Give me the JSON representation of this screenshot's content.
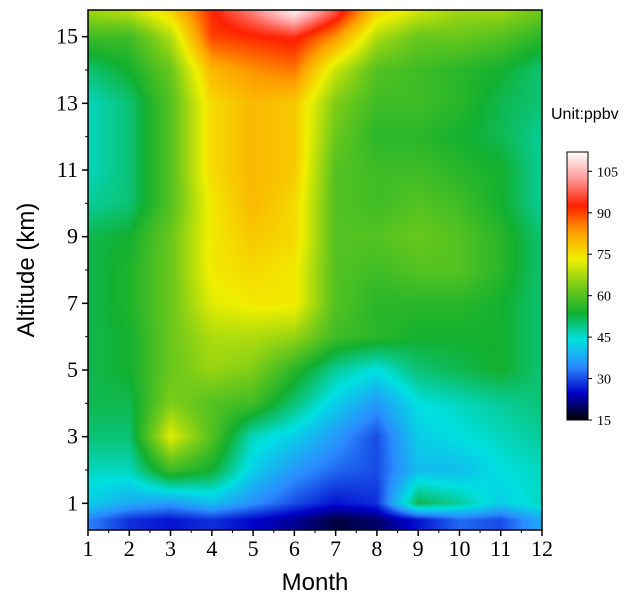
{
  "chart_data": {
    "type": "heatmap",
    "xlabel": "Month",
    "ylabel": "Altitude (km)",
    "x_ticks": [
      "1",
      "2",
      "3",
      "4",
      "5",
      "6",
      "7",
      "8",
      "9",
      "10",
      "11",
      "12"
    ],
    "y_ticks": [
      "1",
      "3",
      "5",
      "7",
      "9",
      "11",
      "13",
      "15"
    ],
    "xlim": [
      1,
      12
    ],
    "ylim": [
      0.2,
      15.8
    ],
    "colorbar": {
      "unit_label": "Unit:ppbv",
      "ticks": [
        "15",
        "30",
        "45",
        "60",
        "75",
        "90",
        "105"
      ],
      "range": [
        15,
        112
      ],
      "colors": [
        "#000000",
        "#0000c8",
        "#2b8cff",
        "#00e0e0",
        "#12b030",
        "#79cc18",
        "#f0f000",
        "#ffa000",
        "#ff2000",
        "#ff9999",
        "#ffffff"
      ]
    },
    "x": [
      1,
      2,
      3,
      4,
      5,
      6,
      7,
      8,
      9,
      10,
      11,
      12
    ],
    "y": [
      0.5,
      1,
      2,
      3,
      4,
      5,
      6,
      7,
      8,
      9,
      10,
      11,
      12,
      13,
      14,
      15,
      15.7
    ],
    "z": [
      [
        34,
        28,
        26,
        28,
        25,
        22,
        18,
        20,
        26,
        32,
        30,
        38
      ],
      [
        42,
        38,
        36,
        40,
        35,
        30,
        26,
        28,
        52,
        48,
        42,
        46
      ],
      [
        46,
        46,
        58,
        54,
        42,
        36,
        32,
        30,
        40,
        40,
        44,
        46
      ],
      [
        50,
        50,
        72,
        60,
        46,
        42,
        36,
        30,
        42,
        44,
        46,
        48
      ],
      [
        52,
        52,
        64,
        60,
        58,
        50,
        42,
        36,
        44,
        46,
        48,
        50
      ],
      [
        52,
        54,
        62,
        66,
        64,
        56,
        48,
        44,
        50,
        52,
        54,
        50
      ],
      [
        52,
        54,
        62,
        68,
        68,
        66,
        58,
        56,
        54,
        54,
        54,
        50
      ],
      [
        52,
        55,
        62,
        72,
        74,
        74,
        60,
        56,
        56,
        56,
        54,
        50
      ],
      [
        52,
        55,
        62,
        74,
        76,
        74,
        60,
        58,
        60,
        60,
        56,
        50
      ],
      [
        52,
        54,
        62,
        74,
        78,
        76,
        60,
        60,
        62,
        60,
        56,
        50
      ],
      [
        48,
        50,
        60,
        74,
        80,
        76,
        60,
        58,
        60,
        58,
        54,
        48
      ],
      [
        46,
        50,
        60,
        76,
        80,
        78,
        60,
        58,
        58,
        56,
        54,
        48
      ],
      [
        46,
        50,
        60,
        76,
        80,
        78,
        62,
        56,
        56,
        54,
        52,
        48
      ],
      [
        46,
        50,
        60,
        76,
        80,
        78,
        64,
        58,
        58,
        56,
        52,
        50
      ],
      [
        50,
        54,
        62,
        80,
        84,
        86,
        70,
        60,
        58,
        56,
        54,
        50
      ],
      [
        58,
        58,
        68,
        90,
        92,
        94,
        84,
        68,
        62,
        62,
        60,
        56
      ],
      [
        66,
        68,
        76,
        92,
        100,
        110,
        96,
        76,
        70,
        66,
        66,
        62
      ]
    ]
  }
}
